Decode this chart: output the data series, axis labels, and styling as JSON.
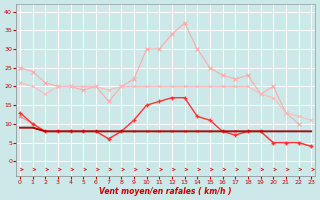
{
  "xlabel": "Vent moyen/en rafales ( km/h )",
  "x": [
    0,
    1,
    2,
    3,
    4,
    5,
    6,
    7,
    8,
    9,
    10,
    11,
    12,
    13,
    14,
    15,
    16,
    17,
    18,
    19,
    20,
    21,
    22,
    23
  ],
  "line_rafales_max": [
    25,
    24,
    21,
    20,
    20,
    19,
    20,
    16,
    20,
    22,
    30,
    30,
    34,
    37,
    30,
    25,
    23,
    22,
    23,
    18,
    20,
    13,
    10,
    null
  ],
  "line_rafales2": [
    21,
    20,
    18,
    20,
    20,
    20,
    20,
    19,
    20,
    20,
    20,
    20,
    20,
    20,
    20,
    20,
    20,
    20,
    20,
    18,
    17,
    13,
    12,
    11
  ],
  "line_moyen": [
    13,
    10,
    8,
    8,
    8,
    8,
    8,
    6,
    8,
    11,
    15,
    16,
    17,
    17,
    12,
    11,
    8,
    7,
    8,
    8,
    5,
    5,
    5,
    4
  ],
  "line_flat1": [
    9,
    9,
    8,
    8,
    8,
    8,
    8,
    8,
    8,
    8,
    8,
    8,
    8,
    8,
    8,
    8,
    8,
    8,
    8,
    8,
    8,
    8,
    8,
    8
  ],
  "line_flat2": [
    9,
    9,
    8,
    8,
    8,
    8,
    8,
    8,
    8,
    8,
    8,
    8,
    8,
    8,
    8,
    8,
    8,
    8,
    8,
    8,
    8,
    8,
    8,
    8
  ],
  "line_low": [
    12,
    10,
    8,
    8,
    8,
    8,
    8,
    6,
    8,
    8,
    8,
    8,
    8,
    8,
    8,
    8,
    8,
    8,
    8,
    8,
    5,
    5,
    5,
    4
  ],
  "bg_color": "#cce8e8",
  "grid_color": "#ffffff",
  "color_rafales_max": "#ffaaaa",
  "color_rafales2": "#ffbbbb",
  "color_moyen": "#ff3333",
  "color_flat1": "#880000",
  "color_flat2": "#cc0000",
  "color_low": "#ff8888",
  "color_arrows": "#dd2222",
  "color_label": "#cc0000",
  "ylim": [
    -4,
    42
  ],
  "xlim": [
    -0.3,
    23.3
  ],
  "yticks": [
    0,
    5,
    10,
    15,
    20,
    25,
    30,
    35,
    40
  ],
  "xticks": [
    0,
    1,
    2,
    3,
    4,
    5,
    6,
    7,
    8,
    9,
    10,
    11,
    12,
    13,
    14,
    15,
    16,
    17,
    18,
    19,
    20,
    21,
    22,
    23
  ]
}
